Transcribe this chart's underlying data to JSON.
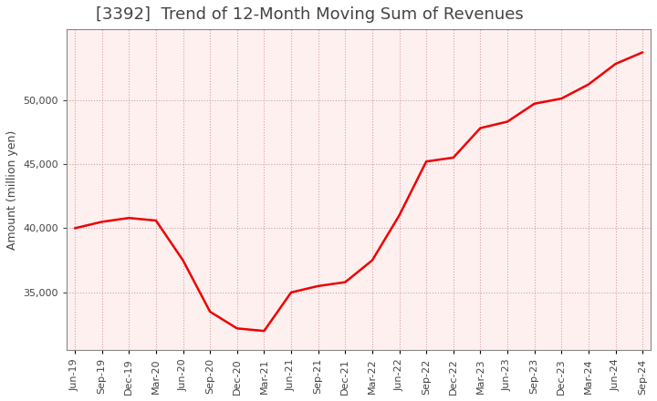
{
  "title": "[3392]  Trend of 12-Month Moving Sum of Revenues",
  "ylabel": "Amount (million yen)",
  "line_color": "#ee0000",
  "background_color": "#ffffff",
  "plot_bg_color": "#fff0f0",
  "grid_color": "#cc9999",
  "x_labels": [
    "Jun-19",
    "Sep-19",
    "Dec-19",
    "Mar-20",
    "Jun-20",
    "Sep-20",
    "Dec-20",
    "Mar-21",
    "Jun-21",
    "Sep-21",
    "Dec-21",
    "Mar-22",
    "Jun-22",
    "Sep-22",
    "Dec-22",
    "Mar-23",
    "Jun-23",
    "Sep-23",
    "Dec-23",
    "Mar-24",
    "Jun-24",
    "Sep-24"
  ],
  "x_values": [
    0,
    1,
    2,
    3,
    4,
    5,
    6,
    7,
    8,
    9,
    10,
    11,
    12,
    13,
    14,
    15,
    16,
    17,
    18,
    19,
    20,
    21
  ],
  "y_values": [
    40000,
    40500,
    40800,
    40600,
    37500,
    33500,
    32200,
    32000,
    35000,
    35500,
    35800,
    37500,
    41000,
    45200,
    45500,
    47800,
    48300,
    49700,
    50100,
    51200,
    52800,
    53700
  ],
  "ylim_min": 30500,
  "ylim_max": 55500,
  "yticks": [
    35000,
    40000,
    45000,
    50000
  ],
  "line_width": 1.8,
  "title_fontsize": 13,
  "axis_fontsize": 9,
  "tick_fontsize": 8,
  "title_color": "#444444",
  "tick_color": "#444444",
  "spine_color": "#888888"
}
